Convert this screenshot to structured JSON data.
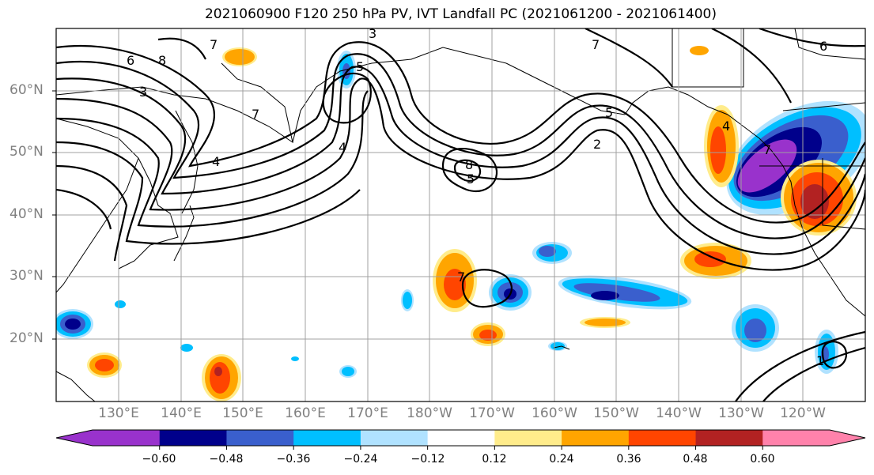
{
  "title": "2021060900 F120 250 hPa PV, IVT Landfall PC (2021061200 - 2021061400)",
  "lat_labels": [
    "60°N",
    "50°N",
    "40°N",
    "30°N",
    "20°N"
  ],
  "lon_labels": [
    "130°E",
    "140°E",
    "150°E",
    "160°E",
    "170°E",
    "180°W",
    "170°W",
    "160°W",
    "150°W",
    "140°W",
    "130°W",
    "120°W"
  ],
  "colorbar": {
    "colors": [
      "#9932cc",
      "#00008b",
      "#3a5fcd",
      "#00bfff",
      "#b0e2ff",
      "#ffffff",
      "#ffec8b",
      "#ffa500",
      "#ff4500",
      "#b22222",
      "#ff82ab"
    ],
    "labels": [
      "−0.60",
      "−0.48",
      "−0.36",
      "−0.24",
      "−0.12",
      "0.12",
      "0.24",
      "0.36",
      "0.48",
      "0.60"
    ]
  },
  "contour_labels": [
    "6",
    "8",
    "7",
    "3",
    "7",
    "4",
    "4",
    "5",
    "8",
    "2",
    "5",
    "7",
    "4",
    "7",
    "6",
    "3",
    "7",
    "5",
    "1"
  ]
}
